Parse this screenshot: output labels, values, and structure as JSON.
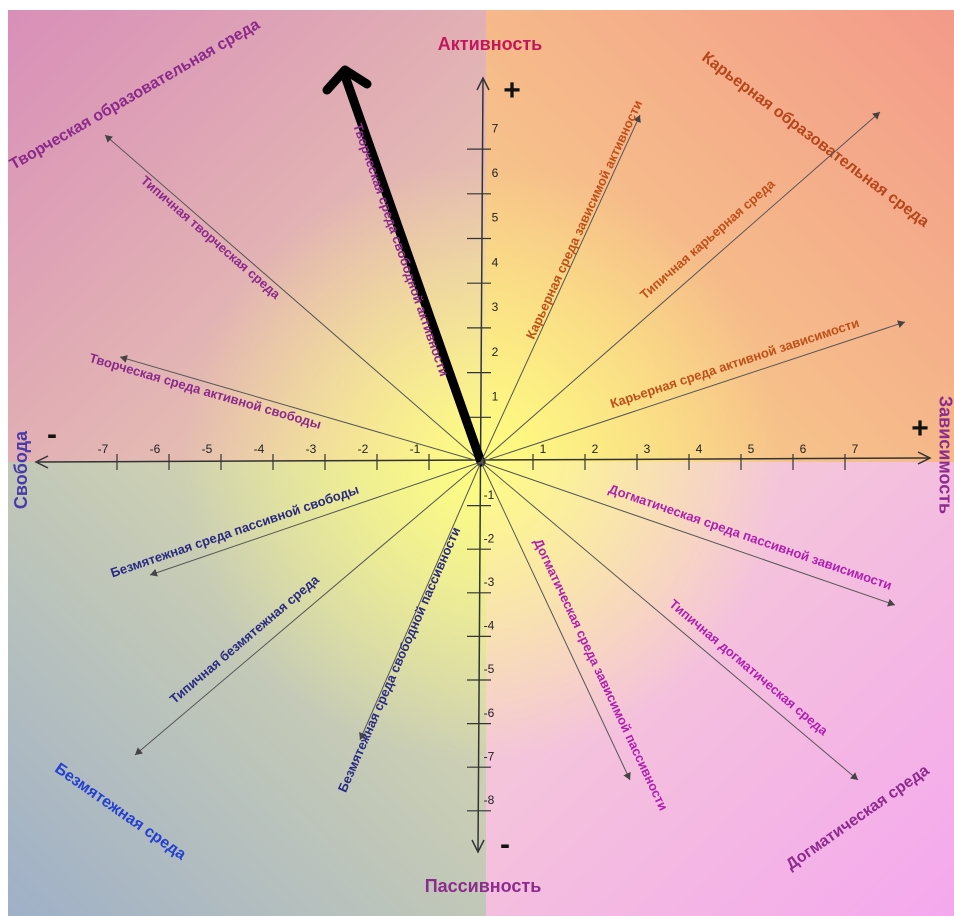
{
  "axes": {
    "top": "Активность",
    "bottom": "Пассивность",
    "left": "Свобода",
    "right": "Зависимость",
    "top_sign": "+",
    "right_sign": "+",
    "left_sign": "-",
    "bottom_sign": "-"
  },
  "x_tick_labels": [
    "-7",
    "-6",
    "-5",
    "-4",
    "-3",
    "-2",
    "-1",
    "1",
    "2",
    "3",
    "4",
    "5",
    "6",
    "7"
  ],
  "y_tick_labels": [
    "7",
    "6",
    "5",
    "4",
    "3",
    "2",
    "1",
    "-1",
    "-2",
    "-3",
    "-4",
    "-5",
    "-6",
    "-7",
    "-8"
  ],
  "corners": [
    "Творческая образовательная среда",
    "Карьерная образовательная среда",
    "Безмятежная среда",
    "Догматическая среда"
  ],
  "rays": [
    {
      "label": "Типичная творческая среда"
    },
    {
      "label": "Творческая среда активной свободы"
    },
    {
      "label": "Творческая среда свободной активности"
    },
    {
      "label": "Карьерная среда зависимой активности"
    },
    {
      "label": "Типичная карьерная среда"
    },
    {
      "label": "Карьерная среда активной зависимости"
    },
    {
      "label": "Догматическая среда пассивной зависимости"
    },
    {
      "label": "Типичная догматическая среда"
    },
    {
      "label": "Догматическая среда зависимой пассивности"
    },
    {
      "label": "Безмятежная среда свободной пассивности"
    },
    {
      "label": "Типичная безмятежная среда"
    },
    {
      "label": "Безмятежная среда пассивной свободы"
    }
  ]
}
